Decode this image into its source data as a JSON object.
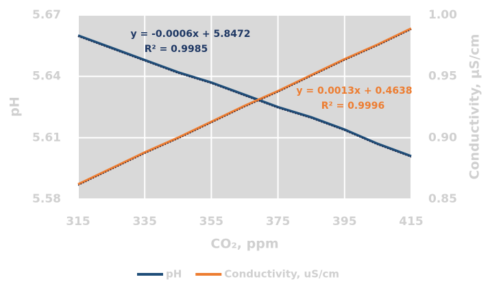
{
  "chart_data": {
    "type": "line",
    "x": [
      315,
      325,
      335,
      345,
      355,
      365,
      375,
      385,
      395,
      405,
      415
    ],
    "series": [
      {
        "name": "pH",
        "color": "#1f4e79",
        "values": [
          5.66,
          5.654,
          5.648,
          5.642,
          5.637,
          5.631,
          5.625,
          5.62,
          5.614,
          5.607,
          5.601
        ]
      },
      {
        "name": "Conductivity, uS/cm",
        "color": "#ed7d31",
        "axis": "y2",
        "values": [
          0.862,
          0.875,
          0.888,
          0.9,
          0.913,
          0.926,
          0.938,
          0.951,
          0.964,
          0.976,
          0.989
        ]
      }
    ],
    "xlim": [
      315,
      415
    ],
    "xticks": [
      315,
      335,
      355,
      375,
      395,
      415
    ],
    "ylim": [
      5.58,
      5.67
    ],
    "yticks": [
      5.58,
      5.61,
      5.64,
      5.67
    ],
    "y2lim": [
      0.85,
      1.0
    ],
    "y2ticks": [
      0.85,
      {
        "value": 0.9,
        "label": "0.90"
      },
      0.95,
      {
        "value": 1.0,
        "label": "1.00"
      }
    ],
    "xlabel": "CO₂, ppm",
    "ylabel": "pH",
    "y2label": "Conductivity, μS/cm",
    "annotations": [
      "y = -0.0006x + 5.8472",
      "R² = 0.9985",
      "y = 0.0013x + 0.4638",
      "R² = 0.9996"
    ],
    "grid": true,
    "legend": "bottom"
  }
}
